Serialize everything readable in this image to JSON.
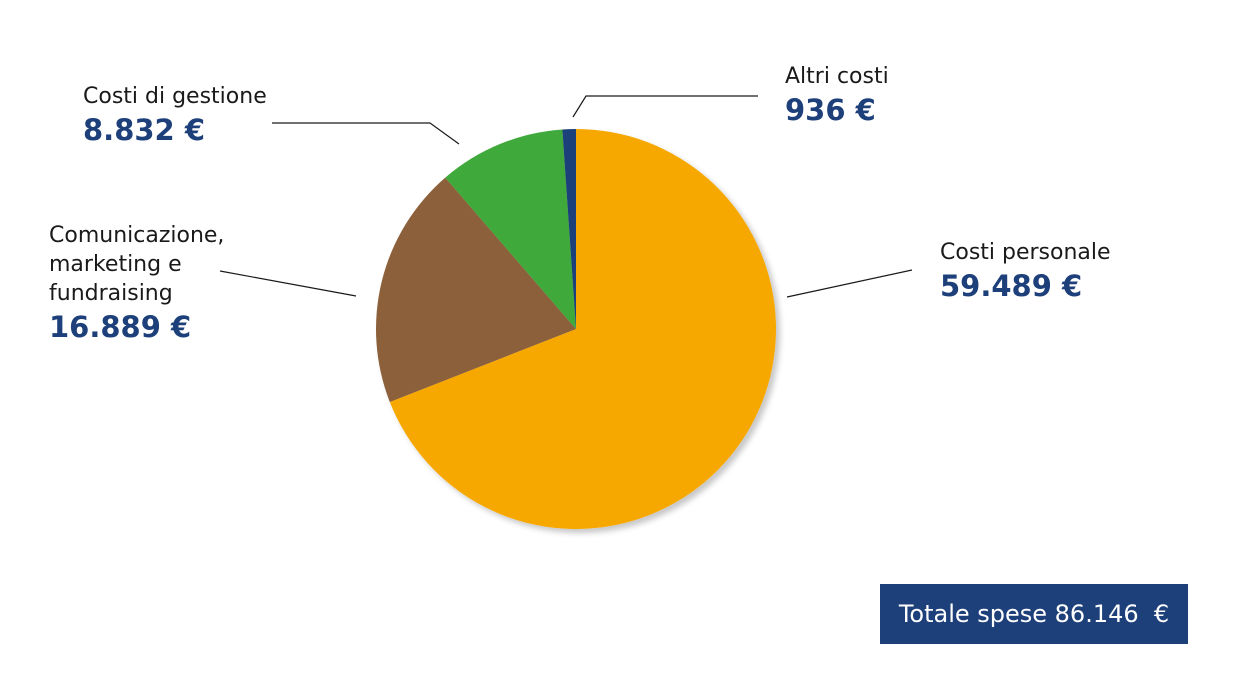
{
  "chart_data": {
    "type": "pie",
    "slices": [
      {
        "name": "Costi personale",
        "value": 59489,
        "value_label": "59.489 €",
        "color": "#f6a800"
      },
      {
        "name": "Comunicazione, marketing e fundraising",
        "name_lines": [
          "Comunicazione,",
          "marketing e",
          "fundraising"
        ],
        "value": 16889,
        "value_label": "16.889 €",
        "color": "#8c613b"
      },
      {
        "name": "Costi di gestione",
        "value": 8832,
        "value_label": "8.832 €",
        "color": "#3fa93a"
      },
      {
        "name": "Altri costi",
        "value": 936,
        "value_label": "936 €",
        "color": "#1d3f7a"
      }
    ],
    "total_label": "Totale spese 86.146  €"
  }
}
